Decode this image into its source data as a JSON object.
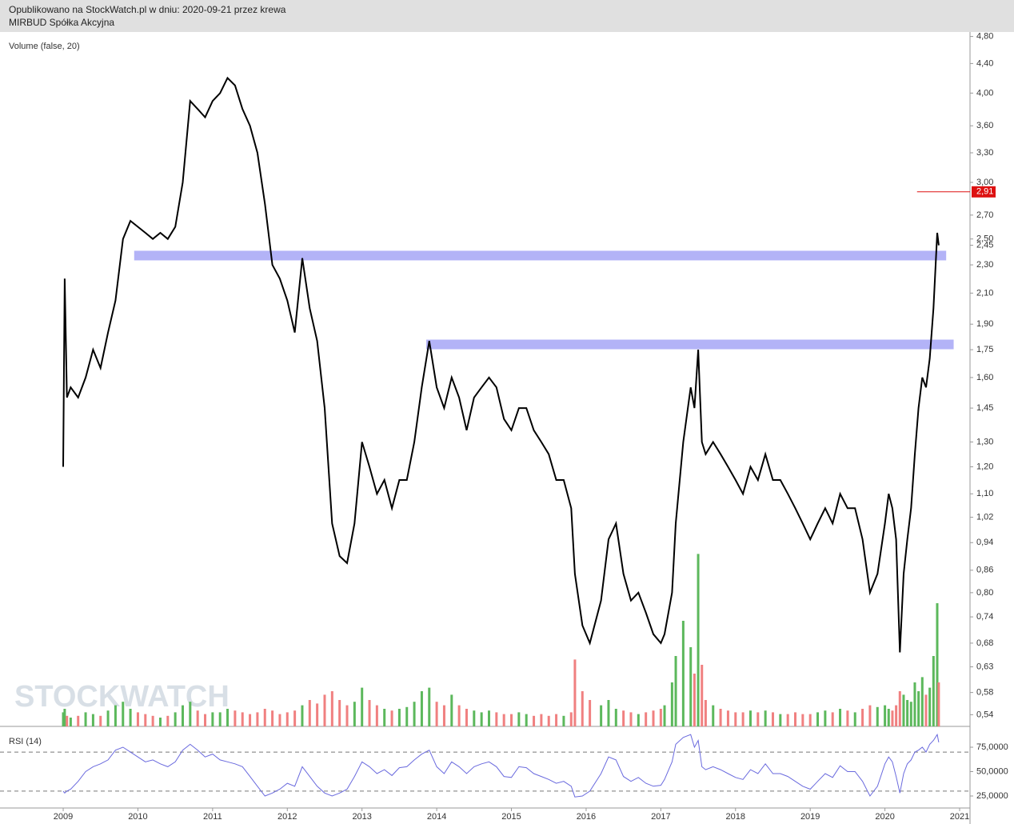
{
  "header": {
    "line1": "Opublikowano na StockWatch.pl w dniu: 2020-09-21 przez krewa",
    "line2": "MIRBUD Spółka Akcyjna"
  },
  "watermark": "STOCKWATCH",
  "chart_data": [
    {
      "type": "line",
      "label": "Volume (false, 20)",
      "log_scale": true,
      "x": [
        2009.0,
        2009.02,
        2009.05,
        2009.1,
        2009.2,
        2009.3,
        2009.4,
        2009.5,
        2009.6,
        2009.7,
        2009.8,
        2009.9,
        2010.0,
        2010.1,
        2010.2,
        2010.3,
        2010.4,
        2010.5,
        2010.6,
        2010.7,
        2010.8,
        2010.9,
        2011.0,
        2011.1,
        2011.2,
        2011.3,
        2011.4,
        2011.5,
        2011.6,
        2011.7,
        2011.8,
        2011.9,
        2012.0,
        2012.1,
        2012.2,
        2012.3,
        2012.4,
        2012.5,
        2012.6,
        2012.7,
        2012.8,
        2012.9,
        2013.0,
        2013.1,
        2013.2,
        2013.3,
        2013.4,
        2013.5,
        2013.6,
        2013.7,
        2013.8,
        2013.9,
        2014.0,
        2014.1,
        2014.2,
        2014.3,
        2014.4,
        2014.5,
        2014.6,
        2014.7,
        2014.8,
        2014.9,
        2015.0,
        2015.1,
        2015.2,
        2015.3,
        2015.4,
        2015.5,
        2015.6,
        2015.7,
        2015.8,
        2015.85,
        2015.95,
        2016.05,
        2016.2,
        2016.3,
        2016.4,
        2016.5,
        2016.6,
        2016.7,
        2016.8,
        2016.9,
        2017.0,
        2017.05,
        2017.15,
        2017.2,
        2017.3,
        2017.4,
        2017.45,
        2017.5,
        2017.55,
        2017.6,
        2017.7,
        2017.8,
        2017.9,
        2018.0,
        2018.1,
        2018.2,
        2018.3,
        2018.4,
        2018.5,
        2018.6,
        2018.7,
        2018.8,
        2018.9,
        2019.0,
        2019.1,
        2019.2,
        2019.3,
        2019.4,
        2019.5,
        2019.6,
        2019.7,
        2019.8,
        2019.9,
        2020.0,
        2020.05,
        2020.1,
        2020.15,
        2020.2,
        2020.25,
        2020.3,
        2020.35,
        2020.4,
        2020.45,
        2020.5,
        2020.55,
        2020.6,
        2020.65,
        2020.7,
        2020.72
      ],
      "series": [
        {
          "color": "#000000",
          "values": [
            1.2,
            2.2,
            1.5,
            1.55,
            1.5,
            1.6,
            1.75,
            1.65,
            1.85,
            2.05,
            2.5,
            2.65,
            2.6,
            2.55,
            2.5,
            2.55,
            2.5,
            2.6,
            3.0,
            3.9,
            3.8,
            3.7,
            3.9,
            4.0,
            4.2,
            4.1,
            3.8,
            3.6,
            3.3,
            2.8,
            2.3,
            2.2,
            2.05,
            1.85,
            2.35,
            2.0,
            1.8,
            1.45,
            1.0,
            0.9,
            0.88,
            1.0,
            1.3,
            1.2,
            1.1,
            1.15,
            1.05,
            1.15,
            1.15,
            1.3,
            1.55,
            1.8,
            1.55,
            1.45,
            1.6,
            1.5,
            1.35,
            1.5,
            1.55,
            1.6,
            1.55,
            1.4,
            1.35,
            1.45,
            1.45,
            1.35,
            1.3,
            1.25,
            1.15,
            1.15,
            1.05,
            0.85,
            0.72,
            0.68,
            0.78,
            0.95,
            1.0,
            0.85,
            0.78,
            0.8,
            0.75,
            0.7,
            0.68,
            0.7,
            0.8,
            1.0,
            1.3,
            1.55,
            1.45,
            1.75,
            1.3,
            1.25,
            1.3,
            1.25,
            1.2,
            1.15,
            1.1,
            1.2,
            1.15,
            1.25,
            1.15,
            1.15,
            1.1,
            1.05,
            1.0,
            0.95,
            1.0,
            1.05,
            1.0,
            1.1,
            1.05,
            1.05,
            0.95,
            0.8,
            0.85,
            1.0,
            1.1,
            1.05,
            0.95,
            0.66,
            0.85,
            0.95,
            1.05,
            1.25,
            1.45,
            1.6,
            1.55,
            1.7,
            2.0,
            2.55,
            2.45
          ]
        },
        {
          "type": "bar",
          "axis": "y2",
          "color_up": "#5cb85c",
          "color_down": "#f08080",
          "values": [
            8,
            10,
            6,
            5,
            6,
            8,
            7,
            6,
            9,
            12,
            14,
            10,
            8,
            7,
            6,
            5,
            6,
            8,
            12,
            14,
            9,
            7,
            8,
            8,
            10,
            9,
            8,
            7,
            8,
            10,
            9,
            7,
            8,
            9,
            12,
            15,
            13,
            18,
            20,
            15,
            12,
            14,
            22,
            15,
            12,
            10,
            9,
            10,
            11,
            14,
            20,
            22,
            14,
            12,
            18,
            12,
            10,
            9,
            8,
            9,
            8,
            7,
            7,
            8,
            7,
            6,
            7,
            6,
            7,
            6,
            8,
            38,
            20,
            15,
            12,
            15,
            10,
            9,
            8,
            7,
            8,
            9,
            10,
            12,
            25,
            40,
            60,
            45,
            30,
            98,
            35,
            15,
            12,
            10,
            9,
            8,
            8,
            9,
            8,
            9,
            8,
            7,
            7,
            8,
            7,
            7,
            8,
            9,
            8,
            10,
            9,
            8,
            10,
            12,
            11,
            12,
            10,
            9,
            12,
            20,
            18,
            15,
            14,
            25,
            20,
            28,
            18,
            22,
            40,
            70,
            25
          ]
        }
      ],
      "ylim": [
        0.52,
        4.87
      ],
      "y2lim": [
        0,
        100
      ],
      "yticks": [
        {
          "value": 4.8,
          "label": "4,80"
        },
        {
          "value": 4.4,
          "label": "4,40"
        },
        {
          "value": 4.0,
          "label": "4,00"
        },
        {
          "value": 3.6,
          "label": "3,60"
        },
        {
          "value": 3.3,
          "label": "3,30"
        },
        {
          "value": 3.0,
          "label": "3,00"
        },
        {
          "value": 2.7,
          "label": "2,70"
        },
        {
          "value": 2.5,
          "label": "2,50"
        },
        {
          "value": 2.45,
          "label": "2,45"
        },
        {
          "value": 2.3,
          "label": "2,30"
        },
        {
          "value": 2.1,
          "label": "2,10"
        },
        {
          "value": 1.9,
          "label": "1,90"
        },
        {
          "value": 1.75,
          "label": "1,75"
        },
        {
          "value": 1.6,
          "label": "1,60"
        },
        {
          "value": 1.45,
          "label": "1,45"
        },
        {
          "value": 1.3,
          "label": "1,30"
        },
        {
          "value": 1.2,
          "label": "1,20"
        },
        {
          "value": 1.1,
          "label": "1,10"
        },
        {
          "value": 1.02,
          "label": "1,02"
        },
        {
          "value": 0.94,
          "label": "0,94"
        },
        {
          "value": 0.86,
          "label": "0,86"
        },
        {
          "value": 0.8,
          "label": "0,80"
        },
        {
          "value": 0.74,
          "label": "0,74"
        },
        {
          "value": 0.68,
          "label": "0,68"
        },
        {
          "value": 0.63,
          "label": "0,63"
        },
        {
          "value": 0.58,
          "label": "0,58"
        },
        {
          "value": 0.54,
          "label": "0,54"
        }
      ],
      "xlim": [
        2008.154,
        2021.139
      ],
      "xticks": [
        2009,
        2010,
        2011,
        2012,
        2013,
        2014,
        2015,
        2016,
        2017,
        2018,
        2019,
        2020,
        2021
      ],
      "bands": [
        {
          "value": 2.37,
          "x": [
            2009.95,
            2020.82
          ]
        },
        {
          "value": 1.78,
          "x": [
            2013.86,
            2020.92
          ]
        }
      ],
      "band_color": "#b3b3f7",
      "last_price": {
        "value": 2.91,
        "label": "2,91",
        "from_x": 2020.43
      },
      "last_price_color": "#dd1111"
    },
    {
      "type": "line",
      "label": "RSI (14)",
      "color": "#6a6ade",
      "values": [
        30,
        28,
        30,
        32,
        40,
        50,
        55,
        58,
        62,
        72,
        75,
        70,
        65,
        60,
        62,
        58,
        55,
        60,
        72,
        78,
        72,
        65,
        68,
        62,
        60,
        58,
        55,
        45,
        35,
        25,
        28,
        32,
        38,
        35,
        55,
        45,
        35,
        28,
        25,
        28,
        32,
        45,
        60,
        55,
        48,
        52,
        46,
        54,
        55,
        62,
        68,
        72,
        55,
        48,
        60,
        55,
        48,
        55,
        58,
        60,
        55,
        45,
        44,
        55,
        54,
        48,
        45,
        42,
        38,
        40,
        35,
        24,
        25,
        30,
        48,
        65,
        62,
        45,
        40,
        44,
        38,
        35,
        36,
        42,
        60,
        78,
        85,
        88,
        75,
        82,
        55,
        52,
        55,
        52,
        48,
        44,
        42,
        52,
        48,
        58,
        48,
        48,
        45,
        40,
        35,
        32,
        40,
        48,
        44,
        56,
        50,
        50,
        40,
        25,
        35,
        58,
        65,
        60,
        45,
        28,
        48,
        58,
        62,
        70,
        72,
        75,
        70,
        78,
        82,
        88,
        80
      ],
      "ylim": [
        12.7,
        90.6
      ],
      "yticks": [
        {
          "value": 75,
          "label": "75,0000"
        },
        {
          "value": 50,
          "label": "50,0000"
        },
        {
          "value": 25,
          "label": "25,0000"
        }
      ],
      "levels": [
        30,
        70
      ]
    }
  ]
}
